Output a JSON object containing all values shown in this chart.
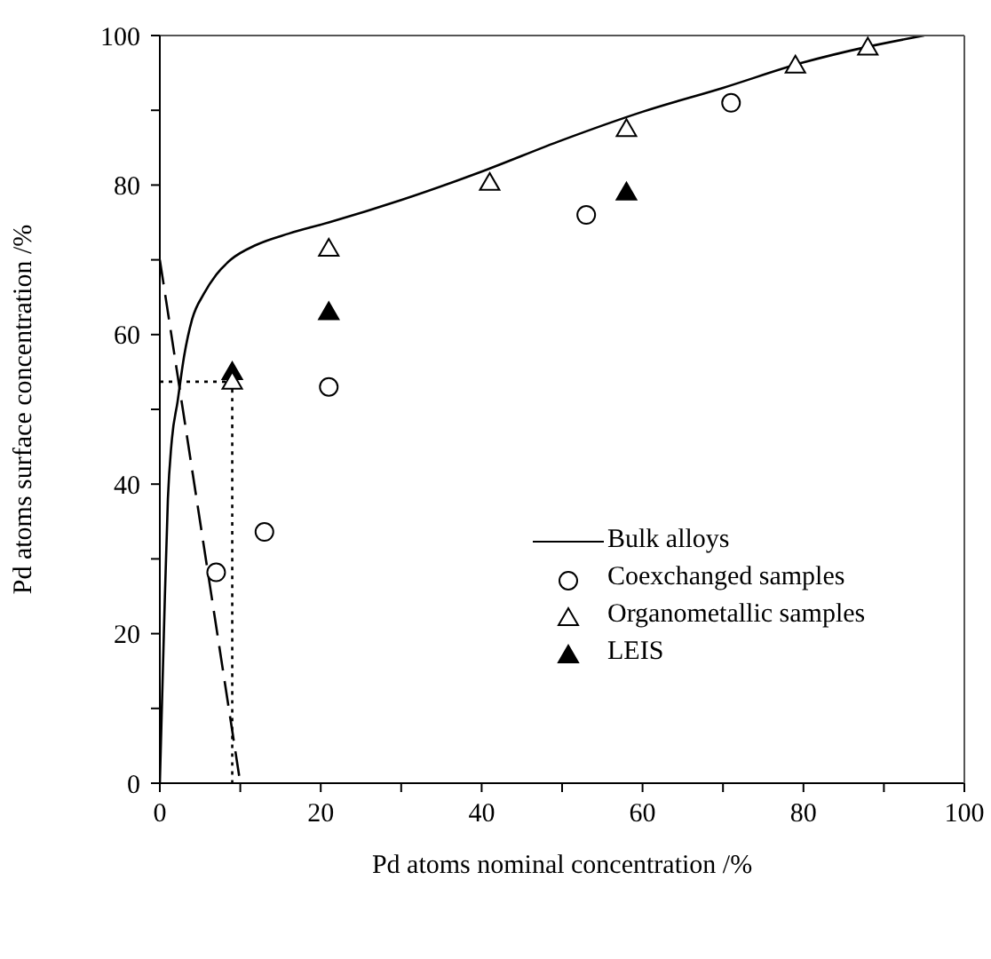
{
  "chart_data": {
    "type": "scatter",
    "xlabel": "Pd atoms nominal concentration  /%",
    "ylabel": "Pd atoms surface concentration  /%",
    "xlim": [
      0,
      100
    ],
    "ylim": [
      0,
      100
    ],
    "xticks": [
      0,
      {
        "value": 10,
        "label": null
      },
      20,
      {
        "value": 30,
        "label": null
      },
      40,
      {
        "value": 50,
        "label": null
      },
      60,
      {
        "value": 70,
        "label": null
      },
      80,
      {
        "value": 90,
        "label": null
      },
      100
    ],
    "yticks": [
      0,
      {
        "value": 10,
        "label": null
      },
      20,
      {
        "value": 30,
        "label": null
      },
      40,
      {
        "value": 50,
        "label": null
      },
      60,
      {
        "value": 70,
        "label": null
      },
      80,
      {
        "value": 90,
        "label": null
      },
      100
    ],
    "grid": false,
    "legend": "bottom right",
    "series": [
      {
        "name": "Bulk alloys",
        "type": "line",
        "color": "#000000",
        "marker": "none",
        "line_style": "solid",
        "x": [
          0,
          0.5,
          1,
          1.5,
          2.2,
          3,
          4,
          5.5,
          7,
          8.8,
          12,
          16,
          21,
          30,
          40,
          50,
          60,
          70,
          80,
          88,
          95
        ],
        "values": [
          0,
          20,
          38,
          46,
          51,
          57,
          62,
          65.5,
          68,
          70,
          72,
          73.5,
          75,
          78,
          81.8,
          86,
          89.8,
          93,
          96.4,
          98.5,
          100
        ]
      },
      {
        "name": "Coexchanged samples",
        "type": "scatter",
        "color": "#ffffff",
        "marker": "circle",
        "x": [
          7,
          13,
          21,
          53,
          71
        ],
        "values": [
          28.2,
          33.6,
          53,
          76,
          91
        ]
      },
      {
        "name": "Organometallic samples",
        "type": "scatter",
        "color": "#ffffff",
        "marker": "triangle",
        "x": [
          9,
          21,
          41,
          58,
          79,
          88
        ],
        "values": [
          53.7,
          71.5,
          80.3,
          87.5,
          96,
          98.4
        ]
      },
      {
        "name": "LEIS",
        "type": "scatter",
        "color": "#000000",
        "marker": "triangle",
        "x": [
          9,
          21,
          58
        ],
        "values": [
          55,
          63,
          79
        ]
      },
      {
        "type": "line",
        "color": "#000000",
        "marker": "none",
        "line_style": "dashed",
        "x": [
          0,
          10
        ],
        "values": [
          70,
          0
        ]
      },
      {
        "type": "line",
        "color": "#000000",
        "marker": "none",
        "line_style": "dotted",
        "x": [
          0,
          9,
          9
        ],
        "values": [
          53.7,
          53.7,
          0
        ]
      }
    ]
  }
}
